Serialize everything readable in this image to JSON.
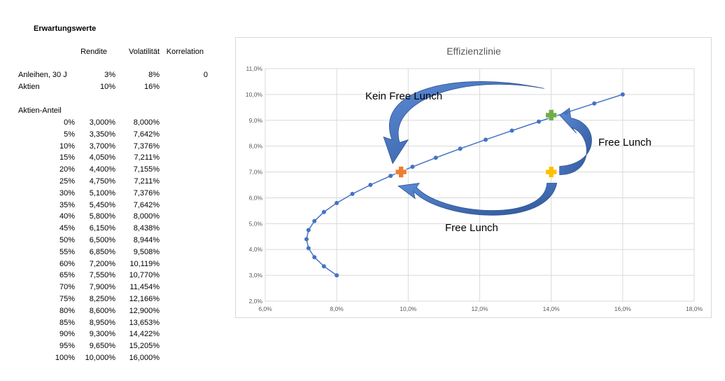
{
  "table": {
    "heading": "Erwartungswerte",
    "headers": [
      "Rendite",
      "Volatilität",
      "Korrelation"
    ],
    "assets": [
      {
        "name": "Anleihen, 30 J",
        "rendite": "3%",
        "volatilitaet": "8%",
        "korrelation": "0"
      },
      {
        "name": "Aktien",
        "rendite": "10%",
        "volatilitaet": "16%",
        "korrelation": ""
      }
    ],
    "share_heading": "Aktien-Anteil",
    "rows": [
      [
        "0%",
        "3,000%",
        "8,000%"
      ],
      [
        "5%",
        "3,350%",
        "7,642%"
      ],
      [
        "10%",
        "3,700%",
        "7,376%"
      ],
      [
        "15%",
        "4,050%",
        "7,211%"
      ],
      [
        "20%",
        "4,400%",
        "7,155%"
      ],
      [
        "25%",
        "4,750%",
        "7,211%"
      ],
      [
        "30%",
        "5,100%",
        "7,376%"
      ],
      [
        "35%",
        "5,450%",
        "7,642%"
      ],
      [
        "40%",
        "5,800%",
        "8,000%"
      ],
      [
        "45%",
        "6,150%",
        "8,438%"
      ],
      [
        "50%",
        "6,500%",
        "8,944%"
      ],
      [
        "55%",
        "6,850%",
        "9,508%"
      ],
      [
        "60%",
        "7,200%",
        "10,119%"
      ],
      [
        "65%",
        "7,550%",
        "10,770%"
      ],
      [
        "70%",
        "7,900%",
        "11,454%"
      ],
      [
        "75%",
        "8,250%",
        "12,166%"
      ],
      [
        "80%",
        "8,600%",
        "12,900%"
      ],
      [
        "85%",
        "8,950%",
        "13,653%"
      ],
      [
        "90%",
        "9,300%",
        "14,422%"
      ],
      [
        "95%",
        "9,650%",
        "15,205%"
      ],
      [
        "100%",
        "10,000%",
        "16,000%"
      ]
    ]
  },
  "chart_data": {
    "type": "scatter",
    "title": "Effizienzlinie",
    "xlabel": "",
    "ylabel": "",
    "xlim": [
      6,
      18
    ],
    "ylim": [
      2,
      11
    ],
    "x_ticks": [
      "6,0%",
      "8,0%",
      "10,0%",
      "12,0%",
      "14,0%",
      "16,0%",
      "18,0%"
    ],
    "y_ticks": [
      "2,0%",
      "3,0%",
      "4,0%",
      "5,0%",
      "6,0%",
      "7,0%",
      "8,0%",
      "9,0%",
      "10,0%",
      "11,0%"
    ],
    "grid": "vertical and horizontal",
    "series": [
      {
        "color": "#4472c4",
        "points": [
          {
            "x": 8.0,
            "y": 3.0
          },
          {
            "x": 7.642,
            "y": 3.35
          },
          {
            "x": 7.376,
            "y": 3.7
          },
          {
            "x": 7.211,
            "y": 4.05
          },
          {
            "x": 7.155,
            "y": 4.4
          },
          {
            "x": 7.211,
            "y": 4.75
          },
          {
            "x": 7.376,
            "y": 5.1
          },
          {
            "x": 7.642,
            "y": 5.45
          },
          {
            "x": 8.0,
            "y": 5.8
          },
          {
            "x": 8.438,
            "y": 6.15
          },
          {
            "x": 8.944,
            "y": 6.5
          },
          {
            "x": 9.508,
            "y": 6.85
          },
          {
            "x": 10.119,
            "y": 7.2
          },
          {
            "x": 10.77,
            "y": 7.55
          },
          {
            "x": 11.454,
            "y": 7.9
          },
          {
            "x": 12.166,
            "y": 8.25
          },
          {
            "x": 12.9,
            "y": 8.6
          },
          {
            "x": 13.653,
            "y": 8.95
          },
          {
            "x": 14.422,
            "y": 9.3
          },
          {
            "x": 15.205,
            "y": 9.65
          },
          {
            "x": 16.0,
            "y": 10.0
          }
        ]
      }
    ],
    "highlight_points": [
      {
        "x": 9.8,
        "y": 7.0,
        "color": "#ed7d31"
      },
      {
        "x": 14.0,
        "y": 9.2,
        "color": "#70ad47"
      },
      {
        "x": 14.0,
        "y": 7.0,
        "color": "#ffc000"
      }
    ],
    "annotations": [
      "Kein Free Lunch",
      "Free Lunch",
      "Free Lunch"
    ],
    "arrow_color": "#4472c4"
  }
}
